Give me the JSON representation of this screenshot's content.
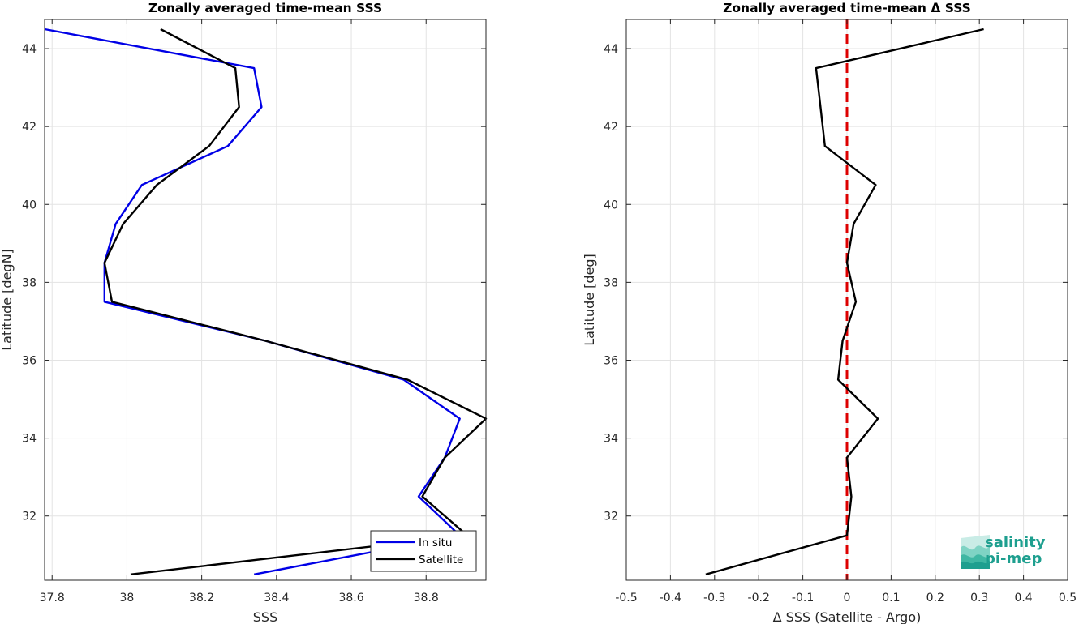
{
  "chart_data": [
    {
      "type": "line",
      "title": "Zonally averaged time-mean SSS",
      "xlabel": "SSS",
      "ylabel": "Latitude [degN]",
      "xlim": [
        37.78,
        38.96
      ],
      "ylim": [
        30.35,
        44.75
      ],
      "xticks": [
        37.8,
        38,
        38.2,
        38.4,
        38.6,
        38.8
      ],
      "xtick_labels": [
        "37.8",
        "38",
        "38.2",
        "38.4",
        "38.6",
        "38.8"
      ],
      "yticks": [
        32,
        34,
        36,
        38,
        40,
        42,
        44
      ],
      "ytick_labels": [
        "32",
        "34",
        "36",
        "38",
        "40",
        "42",
        "44"
      ],
      "grid": true,
      "legend_position": "bottom-right",
      "series": [
        {
          "name": "In situ",
          "color": "#0000e6",
          "points": [
            [
              38.34,
              30.5
            ],
            [
              38.89,
              31.5
            ],
            [
              38.78,
              32.5
            ],
            [
              38.85,
              33.5
            ],
            [
              38.89,
              34.5
            ],
            [
              38.74,
              35.5
            ],
            [
              38.37,
              36.5
            ],
            [
              37.94,
              37.5
            ],
            [
              37.94,
              38.5
            ],
            [
              37.97,
              39.5
            ],
            [
              38.04,
              40.5
            ],
            [
              38.27,
              41.5
            ],
            [
              38.36,
              42.5
            ],
            [
              38.34,
              43.5
            ],
            [
              37.78,
              44.5
            ]
          ]
        },
        {
          "name": "Satellite",
          "color": "#000000",
          "points": [
            [
              38.01,
              30.5
            ],
            [
              38.91,
              31.5
            ],
            [
              38.79,
              32.5
            ],
            [
              38.85,
              33.5
            ],
            [
              38.96,
              34.5
            ],
            [
              38.75,
              35.5
            ],
            [
              38.37,
              36.5
            ],
            [
              37.96,
              37.5
            ],
            [
              37.94,
              38.5
            ],
            [
              37.99,
              39.5
            ],
            [
              38.08,
              40.5
            ],
            [
              38.22,
              41.5
            ],
            [
              38.3,
              42.5
            ],
            [
              38.29,
              43.5
            ],
            [
              38.09,
              44.5
            ]
          ]
        }
      ]
    },
    {
      "type": "line",
      "title": "Zonally averaged time-mean Δ SSS",
      "xlabel": "Δ SSS (Satellite - Argo)",
      "ylabel": "Latitude [deg]",
      "xlim": [
        -0.5,
        0.5
      ],
      "ylim": [
        30.35,
        44.75
      ],
      "xticks": [
        -0.5,
        -0.4,
        -0.3,
        -0.2,
        -0.1,
        0,
        0.1,
        0.2,
        0.3,
        0.4,
        0.5
      ],
      "xtick_labels": [
        "-0.5",
        "-0.4",
        "-0.3",
        "-0.2",
        "-0.1",
        "0",
        "0.1",
        "0.2",
        "0.3",
        "0.4",
        "0.5"
      ],
      "yticks": [
        32,
        34,
        36,
        38,
        40,
        42,
        44
      ],
      "ytick_labels": [
        "32",
        "34",
        "36",
        "38",
        "40",
        "42",
        "44"
      ],
      "grid": true,
      "reference_line": {
        "x": 0,
        "color": "#dd0000",
        "style": "dashed"
      },
      "series": [
        {
          "color": "#000000",
          "points": [
            [
              -0.32,
              30.5
            ],
            [
              0.0,
              31.5
            ],
            [
              0.01,
              32.5
            ],
            [
              0.0,
              33.5
            ],
            [
              0.07,
              34.5
            ],
            [
              -0.02,
              35.5
            ],
            [
              -0.01,
              36.5
            ],
            [
              0.02,
              37.5
            ],
            [
              0.0,
              38.5
            ],
            [
              0.015,
              39.5
            ],
            [
              0.065,
              40.5
            ],
            [
              -0.05,
              41.5
            ],
            [
              -0.06,
              42.5
            ],
            [
              -0.07,
              43.5
            ],
            [
              0.31,
              44.5
            ]
          ]
        }
      ]
    }
  ],
  "logo": {
    "line1": "salinity",
    "line2": "pi-mep",
    "color": "#1e9f8f"
  }
}
